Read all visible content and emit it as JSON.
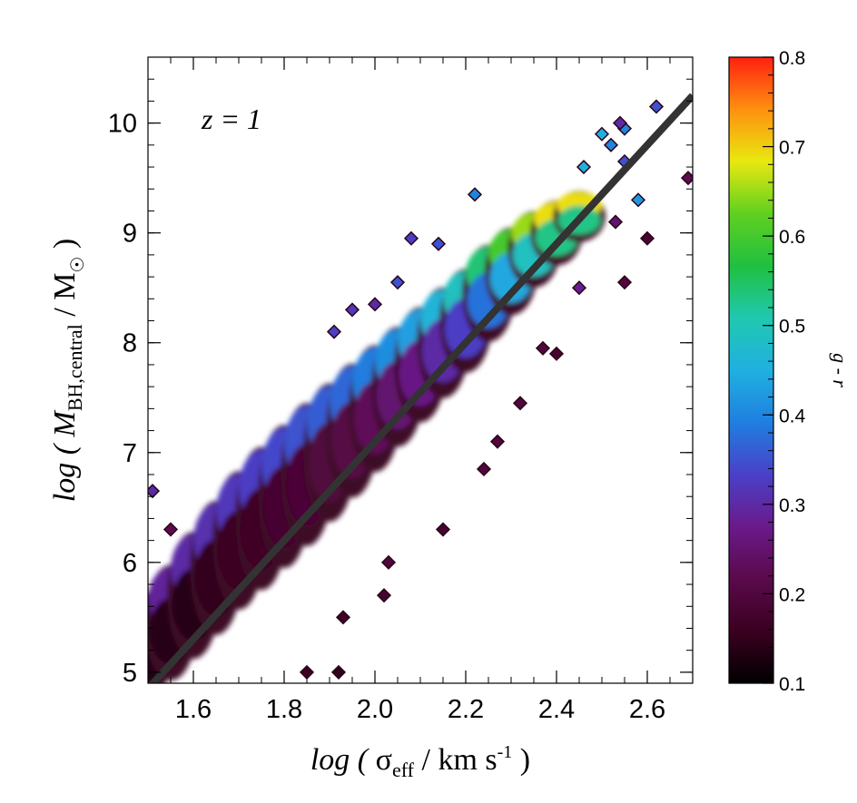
{
  "chart_data": {
    "type": "heatmap",
    "annotation": "z = 1",
    "xlabel": {
      "prefix": "log ( ",
      "symbol": "σ",
      "sub": "eff",
      "unit": " / km s",
      "sup": "-1",
      "suffix": " )"
    },
    "ylabel": {
      "prefix": "log ( ",
      "symbol": "M",
      "sub": "BH,central",
      "unit": " / M",
      "sup": "☉",
      "suffix": " )"
    },
    "xlim": [
      1.5,
      2.7
    ],
    "ylim": [
      4.9,
      10.6
    ],
    "xticks": [
      "1.6",
      "1.8",
      "2.0",
      "2.2",
      "2.4",
      "2.6"
    ],
    "yticks": [
      "5",
      "6",
      "7",
      "8",
      "9",
      "10"
    ],
    "fit_line": {
      "x": [
        1.5,
        2.7
      ],
      "y": [
        4.85,
        10.25
      ],
      "color": "#333333"
    },
    "colorbar": {
      "label": "g - r",
      "range": [
        0.1,
        0.8
      ],
      "ticks": [
        "0.1",
        "0.2",
        "0.3",
        "0.4",
        "0.5",
        "0.6",
        "0.7",
        "0.8"
      ],
      "colors": [
        "#000000",
        "#3a0020",
        "#5a0a4a",
        "#6a1a8a",
        "#4a40c8",
        "#1f7fe0",
        "#20b0e0",
        "#20c8b0",
        "#20c040",
        "#60d020",
        "#e8e810",
        "#ff9010",
        "#ff2010"
      ]
    },
    "ridge": [
      {
        "x": 1.5,
        "y": 5.25,
        "w": 0.45,
        "c": 0.16
      },
      {
        "x": 1.55,
        "y": 5.45,
        "w": 0.5,
        "c": 0.17
      },
      {
        "x": 1.6,
        "y": 5.7,
        "w": 0.55,
        "c": 0.18
      },
      {
        "x": 1.65,
        "y": 5.95,
        "w": 0.58,
        "c": 0.19
      },
      {
        "x": 1.7,
        "y": 6.2,
        "w": 0.6,
        "c": 0.2
      },
      {
        "x": 1.75,
        "y": 6.4,
        "w": 0.62,
        "c": 0.21
      },
      {
        "x": 1.8,
        "y": 6.6,
        "w": 0.62,
        "c": 0.22
      },
      {
        "x": 1.85,
        "y": 6.8,
        "w": 0.62,
        "c": 0.23
      },
      {
        "x": 1.9,
        "y": 7.0,
        "w": 0.6,
        "c": 0.24
      },
      {
        "x": 1.95,
        "y": 7.2,
        "w": 0.58,
        "c": 0.25
      },
      {
        "x": 2.0,
        "y": 7.4,
        "w": 0.55,
        "c": 0.27
      },
      {
        "x": 2.05,
        "y": 7.6,
        "w": 0.52,
        "c": 0.29
      },
      {
        "x": 2.1,
        "y": 7.8,
        "w": 0.5,
        "c": 0.31
      },
      {
        "x": 2.15,
        "y": 8.0,
        "w": 0.48,
        "c": 0.34
      },
      {
        "x": 2.2,
        "y": 8.2,
        "w": 0.45,
        "c": 0.37
      },
      {
        "x": 2.25,
        "y": 8.45,
        "w": 0.42,
        "c": 0.42
      },
      {
        "x": 2.3,
        "y": 8.65,
        "w": 0.38,
        "c": 0.48
      },
      {
        "x": 2.35,
        "y": 8.85,
        "w": 0.33,
        "c": 0.53
      },
      {
        "x": 2.4,
        "y": 9.0,
        "w": 0.28,
        "c": 0.57
      },
      {
        "x": 2.45,
        "y": 9.15,
        "w": 0.22,
        "c": 0.57
      }
    ],
    "outliers": [
      {
        "x": 1.51,
        "y": 6.65,
        "c": 0.3
      },
      {
        "x": 1.55,
        "y": 6.3,
        "c": 0.22
      },
      {
        "x": 1.91,
        "y": 8.1,
        "c": 0.33
      },
      {
        "x": 1.95,
        "y": 8.3,
        "c": 0.32
      },
      {
        "x": 2.0,
        "y": 8.35,
        "c": 0.3
      },
      {
        "x": 2.05,
        "y": 8.55,
        "c": 0.35
      },
      {
        "x": 2.14,
        "y": 8.9,
        "c": 0.35
      },
      {
        "x": 2.08,
        "y": 8.95,
        "c": 0.33
      },
      {
        "x": 2.22,
        "y": 9.35,
        "c": 0.4
      },
      {
        "x": 2.46,
        "y": 9.6,
        "c": 0.45
      },
      {
        "x": 2.5,
        "y": 9.9,
        "c": 0.45
      },
      {
        "x": 2.52,
        "y": 9.8,
        "c": 0.4
      },
      {
        "x": 2.55,
        "y": 9.65,
        "c": 0.35
      },
      {
        "x": 2.55,
        "y": 9.95,
        "c": 0.4
      },
      {
        "x": 2.58,
        "y": 9.3,
        "c": 0.42
      },
      {
        "x": 2.62,
        "y": 10.15,
        "c": 0.35
      },
      {
        "x": 2.54,
        "y": 10.0,
        "c": 0.3
      },
      {
        "x": 2.6,
        "y": 8.95,
        "c": 0.18
      },
      {
        "x": 2.55,
        "y": 8.55,
        "c": 0.2
      },
      {
        "x": 2.69,
        "y": 9.5,
        "c": 0.22
      },
      {
        "x": 2.53,
        "y": 9.1,
        "c": 0.25
      },
      {
        "x": 2.45,
        "y": 8.5,
        "c": 0.28
      },
      {
        "x": 2.37,
        "y": 7.95,
        "c": 0.2
      },
      {
        "x": 2.4,
        "y": 7.9,
        "c": 0.18
      },
      {
        "x": 1.85,
        "y": 5.0,
        "c": 0.16
      },
      {
        "x": 1.92,
        "y": 5.0,
        "c": 0.15
      },
      {
        "x": 2.03,
        "y": 6.0,
        "c": 0.2
      },
      {
        "x": 2.15,
        "y": 6.3,
        "c": 0.18
      },
      {
        "x": 2.24,
        "y": 6.85,
        "c": 0.2
      },
      {
        "x": 2.02,
        "y": 5.7,
        "c": 0.18
      },
      {
        "x": 1.93,
        "y": 5.5,
        "c": 0.17
      },
      {
        "x": 2.27,
        "y": 7.1,
        "c": 0.2
      },
      {
        "x": 2.32,
        "y": 7.45,
        "c": 0.2
      }
    ]
  }
}
